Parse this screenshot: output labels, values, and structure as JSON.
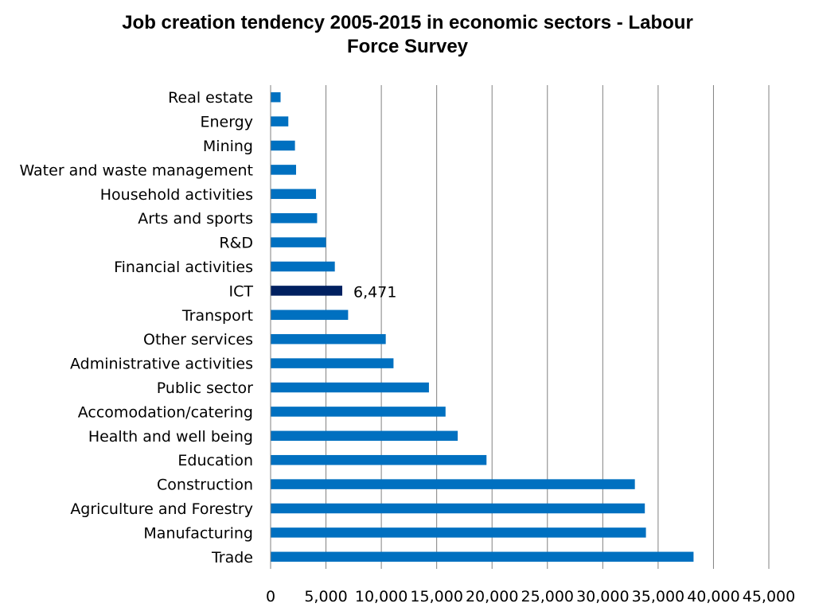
{
  "chart_data": {
    "type": "bar",
    "orientation": "horizontal",
    "title_lines": [
      "Job creation tendency 2005-2015 in economic sectors - Labour",
      "Force Survey"
    ],
    "categories": [
      "Real estate",
      "Energy",
      "Mining",
      "Water and waste management",
      "Household activities",
      "Arts and sports",
      "R&D",
      "Financial activities",
      "ICT",
      "Transport",
      "Other services",
      "Administrative activities",
      "Public sector",
      "Accomodation/catering",
      "Health and well being",
      "Education",
      "Construction",
      "Agriculture and Forestry",
      "Manufacturing",
      "Trade"
    ],
    "values": [
      900,
      1600,
      2200,
      2300,
      4100,
      4200,
      5000,
      5800,
      6471,
      7000,
      10400,
      11100,
      14300,
      15800,
      16900,
      19500,
      32900,
      33800,
      33900,
      38200
    ],
    "highlight": {
      "category": "ICT",
      "label": "6,471"
    },
    "colors": {
      "bar": "#0070c0",
      "highlight": "#002060",
      "grid": "#808080"
    },
    "xlim": [
      0,
      45000
    ],
    "x_ticks": [
      0,
      5000,
      10000,
      15000,
      20000,
      25000,
      30000,
      35000,
      40000,
      45000
    ],
    "x_tick_labels": [
      "0",
      "5,000",
      "10,000",
      "15,000",
      "20,000",
      "25,000",
      "30,000",
      "35,000",
      "40,000",
      "45,000"
    ],
    "xlabel": "",
    "ylabel": "",
    "grid": "vertical",
    "legend": "none"
  }
}
